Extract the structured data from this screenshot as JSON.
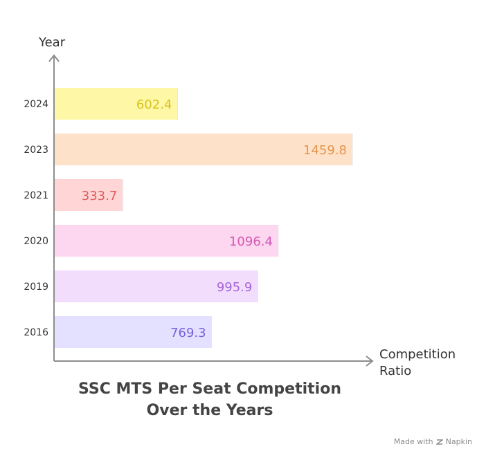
{
  "chart_data": {
    "type": "bar",
    "orientation": "horizontal",
    "title_lines": [
      "SSC MTS Per Seat Competition",
      "Over the Years"
    ],
    "ylabel": "Year",
    "xlabel_lines": [
      "Competition",
      "Ratio"
    ],
    "categories": [
      "2024",
      "2023",
      "2021",
      "2020",
      "2019",
      "2016"
    ],
    "values": [
      602.4,
      1459.8,
      333.7,
      1096.4,
      995.9,
      769.3
    ],
    "value_labels": [
      "602.4",
      "1459.8",
      "333.7",
      "1096.4",
      "995.9",
      "769.3"
    ],
    "xlim": [
      0,
      1459.8
    ],
    "grid": false,
    "legend": "none",
    "bar_colors": [
      "#fdf7a6",
      "#fde2c9",
      "#ffd5d5",
      "#fdd6ef",
      "#f2defc",
      "#e4e0ff"
    ],
    "label_colors": [
      "#d8c21c",
      "#e6944a",
      "#e05a5a",
      "#d259b3",
      "#a566d8",
      "#7a61db"
    ]
  },
  "credit": {
    "text": "Made with",
    "brand": "Napkin"
  }
}
